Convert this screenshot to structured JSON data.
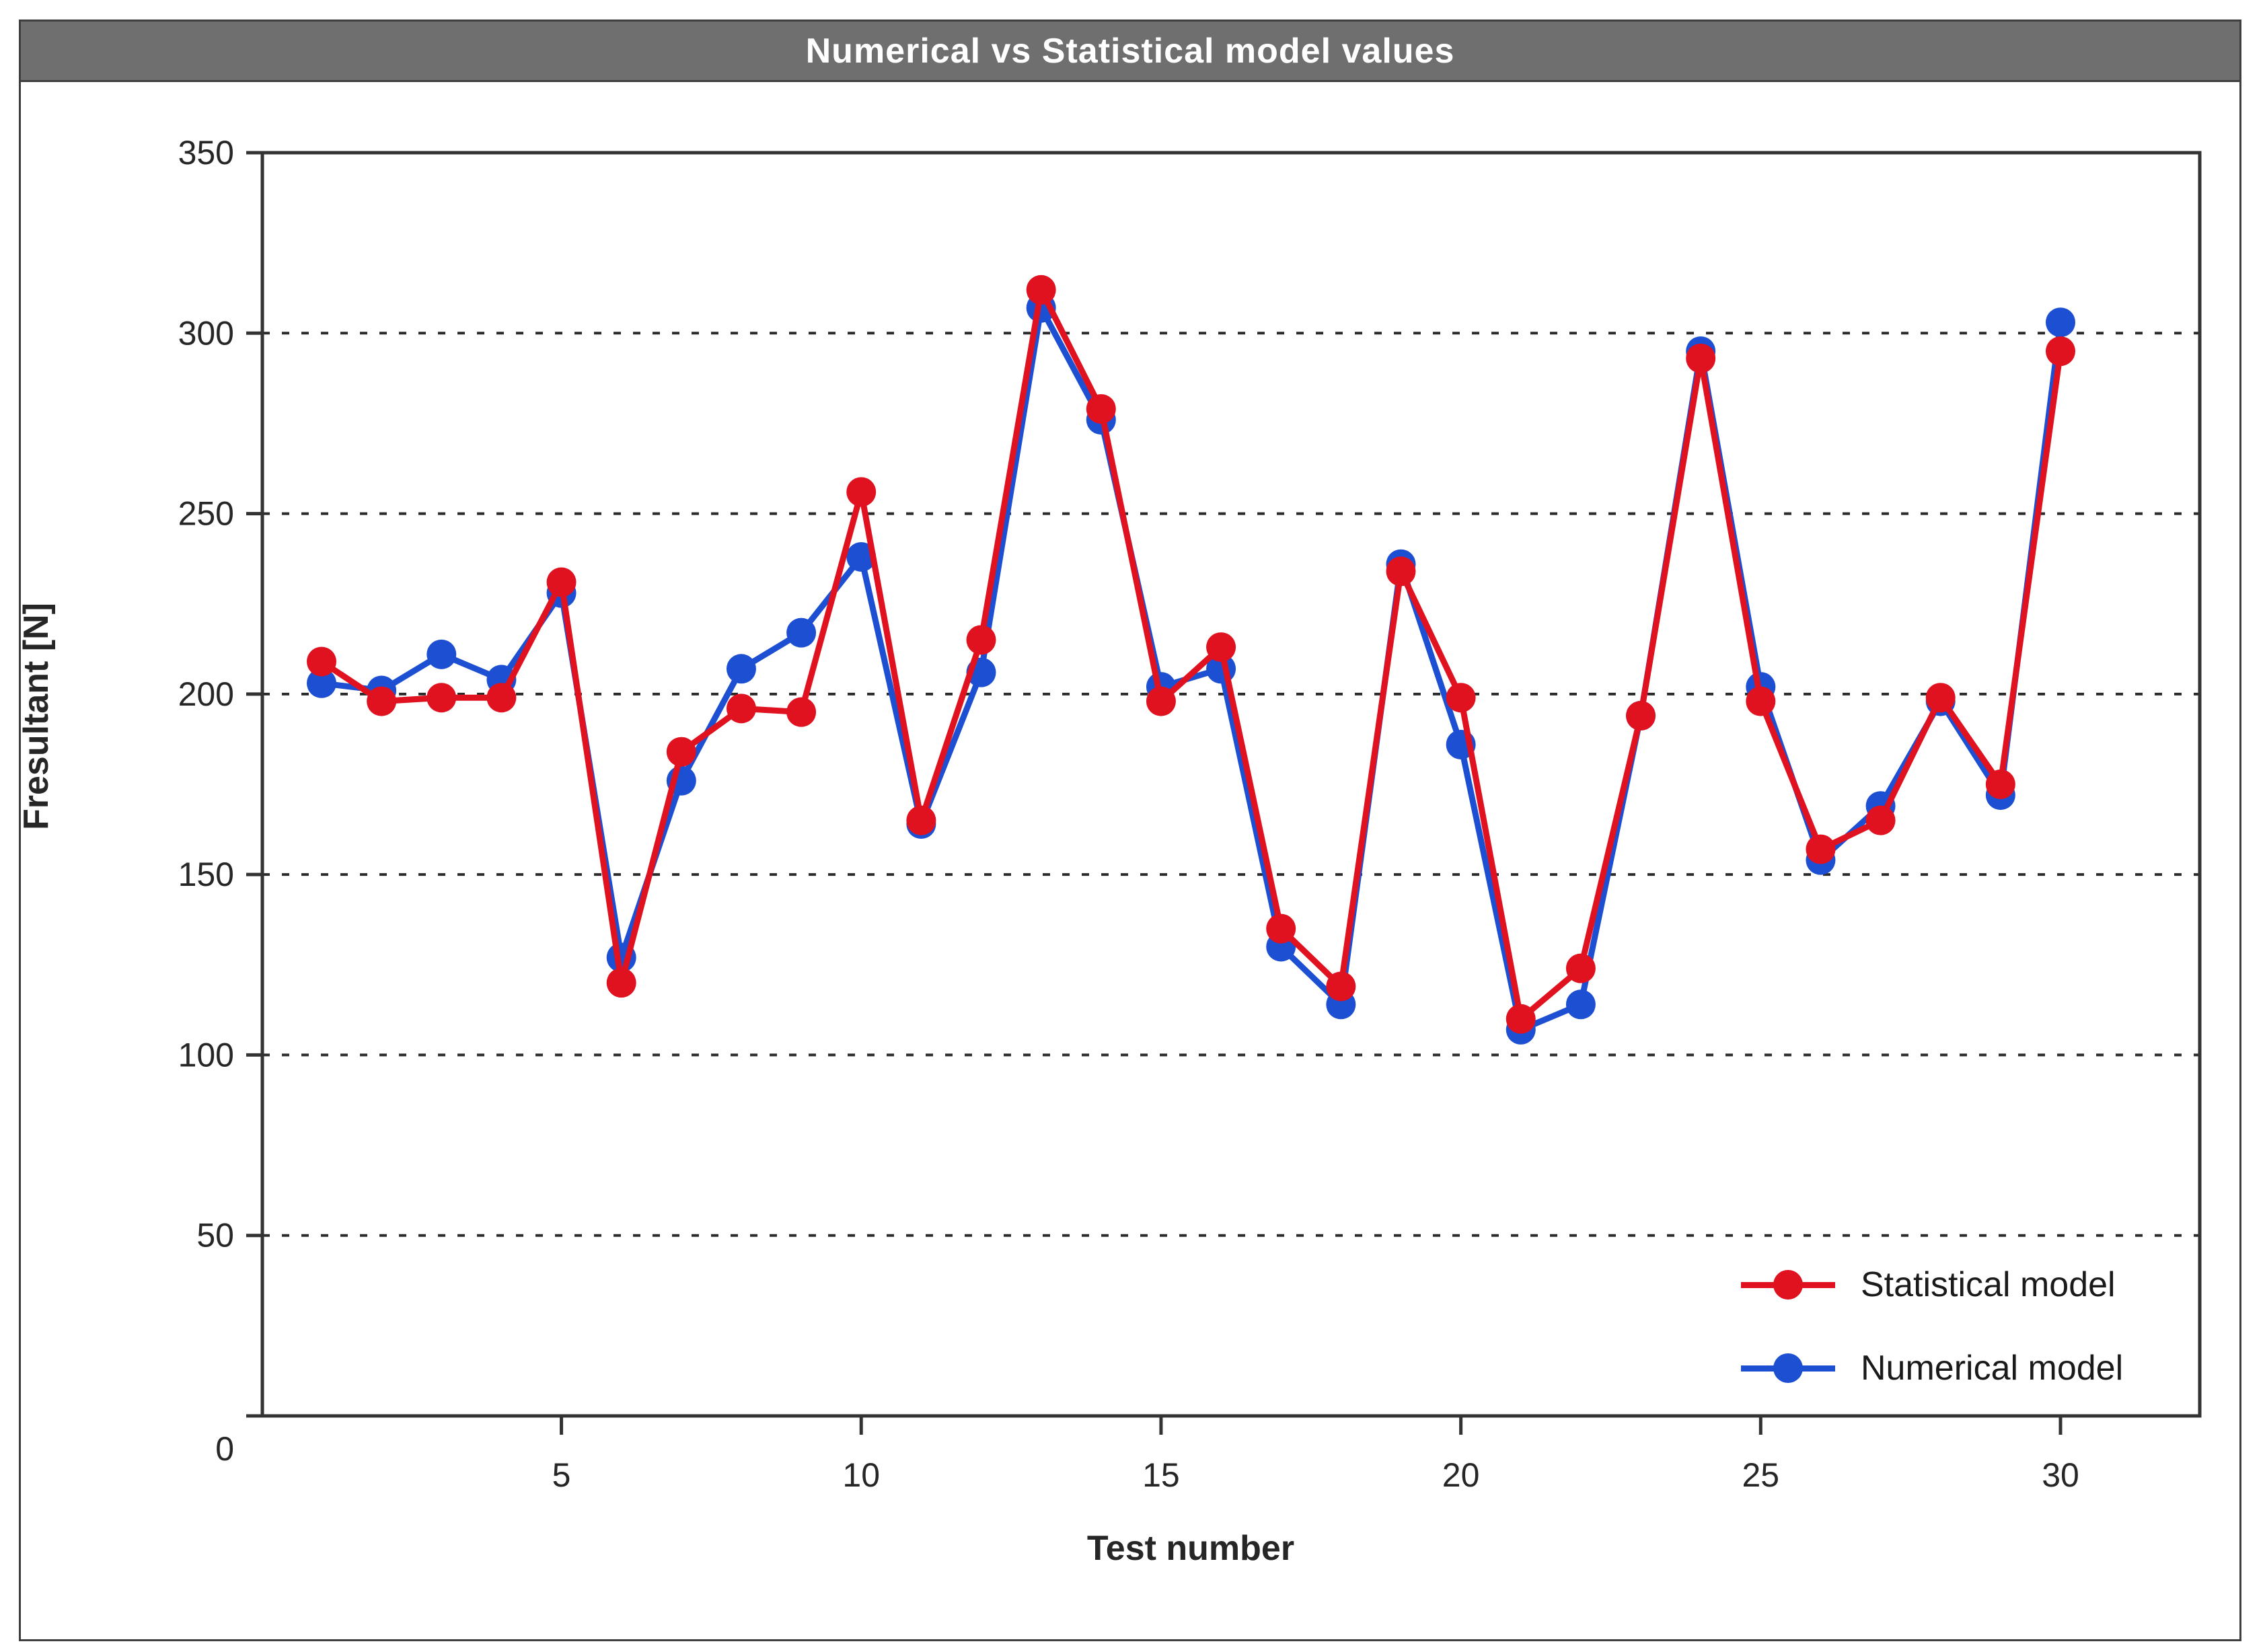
{
  "title": "Numerical vs Statistical model values",
  "axes": {
    "x_label": "Test number",
    "y_label": "Fresultant [N]"
  },
  "legend": {
    "items": [
      {
        "label": "Statistical model",
        "series_key": "statistical"
      },
      {
        "label": "Numerical model",
        "series_key": "numerical"
      }
    ]
  },
  "colors": {
    "statistical": "#e01220",
    "numerical": "#1d4fd2",
    "title_bar_bg": "#6f6f6f",
    "title_bar_border": "#3f3f3f",
    "title_text": "#ffffff",
    "axis_stroke": "#333333",
    "grid_stroke": "#2b2b2b",
    "tick_text": "#262626"
  },
  "chart_data": {
    "type": "line",
    "title": "Numerical vs Statistical model values",
    "xlabel": "Test number",
    "ylabel": "Fresultant [N]",
    "x": [
      1,
      2,
      3,
      4,
      5,
      6,
      7,
      8,
      9,
      10,
      11,
      12,
      13,
      14,
      15,
      16,
      17,
      18,
      19,
      20,
      21,
      22,
      23,
      24,
      25,
      26,
      27,
      28,
      29,
      30
    ],
    "series": [
      {
        "name": "Statistical model",
        "color": "#e01220",
        "values": [
          209,
          198,
          199,
          199,
          231,
          120,
          184,
          196,
          195,
          256,
          165,
          215,
          312,
          279,
          198,
          213,
          135,
          119,
          234,
          199,
          110,
          124,
          194,
          293,
          198,
          157,
          165,
          199,
          175,
          295
        ]
      },
      {
        "name": "Numerical model",
        "color": "#1d4fd2",
        "values": [
          203,
          201,
          211,
          204,
          228,
          127,
          176,
          207,
          217,
          238,
          164,
          206,
          307,
          276,
          202,
          207,
          130,
          114,
          236,
          186,
          107,
          114,
          194,
          295,
          202,
          154,
          169,
          198,
          172,
          303
        ]
      }
    ],
    "x_ticks": [
      5,
      10,
      15,
      20,
      25,
      30
    ],
    "y_ticks": [
      0,
      50,
      100,
      150,
      200,
      250,
      300,
      350
    ],
    "ylim": [
      0,
      350
    ],
    "grid": "horizontal-dotted",
    "legend_position": "lower-right"
  }
}
